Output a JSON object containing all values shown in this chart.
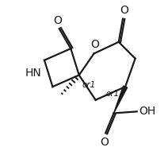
{
  "background": "#ffffff",
  "line_color": "#1a1a1a",
  "line_width": 1.6,
  "font_size": 10,
  "small_font_size": 7.5,
  "fig_width": 2.12,
  "fig_height": 1.9,
  "dpi": 100,
  "xlim": [
    0,
    10
  ],
  "ylim": [
    0,
    9
  ]
}
